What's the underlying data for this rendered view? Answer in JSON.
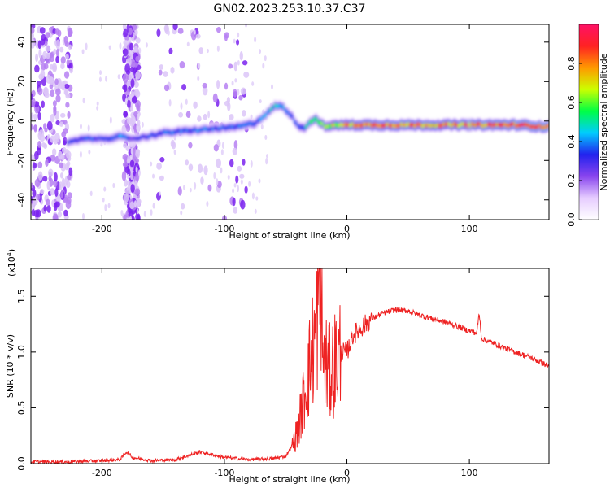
{
  "title": "GN02.2023.253.10.37.C37",
  "colors": {
    "snr_line": "#ee2222",
    "background": "#ffffff",
    "axis": "#000000"
  },
  "colorbar": {
    "label": "Normalized spectral amplitude",
    "range": [
      0.0,
      1.0
    ],
    "ticks": [
      "0.0",
      "0.2",
      "0.4",
      "0.6",
      "0.8"
    ],
    "tick_values": [
      0.0,
      0.2,
      0.4,
      0.6,
      0.8
    ],
    "colormap": [
      "#ffffff",
      "#e6ccff",
      "#8844ee",
      "#2222ee",
      "#00ccff",
      "#00ff44",
      "#ccff00",
      "#ff9900",
      "#ff2222",
      "#ff1166"
    ]
  },
  "chart_data": [
    {
      "type": "heatmap",
      "xlabel": "Height of straight line (km)",
      "ylabel": "Frequency (Hz)",
      "xlim": [
        -258,
        165
      ],
      "ylim": [
        -50,
        49
      ],
      "xticks": [
        "-200",
        "-100",
        "0",
        "100"
      ],
      "xtick_values": [
        -200,
        -100,
        0,
        100
      ],
      "yticks": [
        "-40",
        "-20",
        "0",
        "20",
        "40"
      ],
      "ytick_values": [
        -40,
        -20,
        0,
        20,
        40
      ],
      "ridge": {
        "description_points_x": [
          -228,
          -215,
          -200,
          -185,
          -175,
          -165,
          -150,
          -130,
          -110,
          -90,
          -75,
          -65,
          -58,
          -52,
          -46,
          -40,
          -35,
          -30,
          -25,
          -20,
          -15,
          -10,
          -5,
          0,
          20,
          50,
          80,
          100,
          120,
          140,
          165
        ],
        "frequency_hz": [
          -11,
          -9,
          -9,
          -8,
          -9,
          -8,
          -6,
          -5,
          -4,
          -3,
          -1,
          4,
          8,
          7,
          3,
          -2,
          -4,
          0,
          1,
          -2,
          -3,
          -2,
          -2,
          -2,
          -2,
          -2,
          -2,
          -2,
          -2,
          -2,
          -3
        ],
        "amplitude": [
          0.35,
          0.38,
          0.35,
          0.45,
          0.3,
          0.35,
          0.4,
          0.42,
          0.4,
          0.42,
          0.4,
          0.45,
          0.5,
          0.45,
          0.4,
          0.4,
          0.45,
          0.55,
          0.6,
          0.65,
          0.7,
          0.75,
          0.8,
          0.85,
          0.9,
          0.9,
          0.85,
          0.9,
          0.92,
          0.95,
          0.95
        ]
      },
      "noise_bands_x": [
        [
          -258,
          -225
        ],
        [
          -182,
          -170
        ],
        [
          -155,
          -80
        ]
      ]
    },
    {
      "type": "line",
      "xlabel": "Height of straight line (km)",
      "ylabel": "SNR (10 * v/v)",
      "yscale_label": "(x10",
      "yscale_exponent": "4",
      "yscale_close": ")",
      "xlim": [
        -258,
        165
      ],
      "ylim": [
        0,
        1.75
      ],
      "xticks": [
        "-200",
        "-100",
        "0",
        "100"
      ],
      "xtick_values": [
        -200,
        -100,
        0,
        100
      ],
      "yticks": [
        "0.0",
        "0.5",
        "1.0",
        "1.5"
      ],
      "ytick_values": [
        0.0,
        0.5,
        1.0,
        1.5
      ],
      "series": [
        {
          "x": [
            -258,
            -230,
            -200,
            -185,
            -180,
            -175,
            -160,
            -140,
            -120,
            -100,
            -80,
            -60,
            -50,
            -45,
            -40,
            -35,
            -30,
            -25,
            -21,
            -20,
            -15,
            -10,
            -5,
            0,
            5,
            10,
            20,
            30,
            40,
            50,
            60,
            70,
            80,
            90,
            100,
            106,
            108,
            110,
            120,
            130,
            140,
            150,
            160,
            165
          ],
          "y": [
            0.01,
            0.01,
            0.02,
            0.03,
            0.1,
            0.05,
            0.02,
            0.03,
            0.1,
            0.05,
            0.03,
            0.04,
            0.06,
            0.15,
            0.3,
            0.6,
            0.9,
            1.2,
            1.75,
            1.0,
            0.8,
            0.9,
            1.0,
            1.0,
            1.15,
            1.2,
            1.3,
            1.35,
            1.38,
            1.37,
            1.33,
            1.3,
            1.27,
            1.23,
            1.19,
            1.17,
            1.35,
            1.12,
            1.08,
            1.03,
            0.99,
            0.95,
            0.9,
            0.87
          ]
        }
      ]
    }
  ]
}
